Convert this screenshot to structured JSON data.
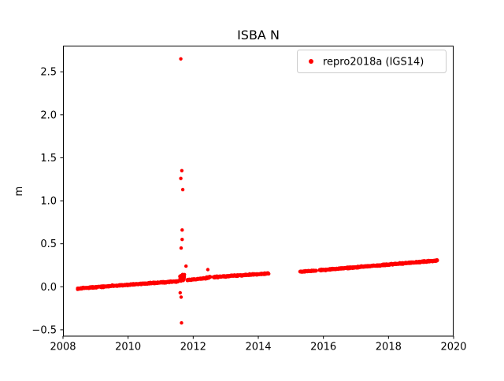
{
  "figure": {
    "background": "#ffffff"
  },
  "chart_data": {
    "type": "scatter",
    "title": "ISBA N",
    "xlabel": "",
    "ylabel": "m",
    "xlim": [
      2008,
      2020
    ],
    "ylim": [
      -0.574,
      2.804
    ],
    "x_ticks": [
      2008,
      2010,
      2012,
      2014,
      2016,
      2018,
      2020
    ],
    "y_ticks": [
      -0.5,
      0.0,
      0.5,
      1.0,
      1.5,
      2.0,
      2.5
    ],
    "grid": false,
    "legend": {
      "position": "upper right",
      "border_color": "#cccccc",
      "background": "#ffffff"
    },
    "series": [
      {
        "name": "repro2018a (IGS14)",
        "color": "#ff0000",
        "marker": "dot",
        "marker_radius_px": 2.2,
        "trend_segments": [
          {
            "x_start": 2008.45,
            "x_end": 2011.55,
            "y_start": -0.02,
            "y_end": 0.065,
            "points_per_year": 160,
            "y_jitter": 0.011
          },
          {
            "x_start": 2011.82,
            "x_end": 2012.35,
            "y_start": 0.078,
            "y_end": 0.098,
            "points_per_year": 160,
            "y_jitter": 0.011
          },
          {
            "x_start": 2012.38,
            "x_end": 2012.53,
            "y_start": 0.1,
            "y_end": 0.115,
            "points_per_year": 220,
            "y_jitter": 0.012
          },
          {
            "x_start": 2012.62,
            "x_end": 2014.32,
            "y_start": 0.112,
            "y_end": 0.155,
            "points_per_year": 160,
            "y_jitter": 0.011
          },
          {
            "x_start": 2015.28,
            "x_end": 2015.78,
            "y_start": 0.175,
            "y_end": 0.187,
            "points_per_year": 160,
            "y_jitter": 0.01
          },
          {
            "x_start": 2015.88,
            "x_end": 2019.5,
            "y_start": 0.192,
            "y_end": 0.305,
            "points_per_year": 160,
            "y_jitter": 0.012
          }
        ],
        "cluster": {
          "x_center": 2011.67,
          "x_spread": 0.1,
          "y_center": 0.1,
          "y_spread": 0.05,
          "n_points": 70
        },
        "outliers": [
          [
            2011.62,
            2.65
          ],
          [
            2011.65,
            1.35
          ],
          [
            2011.62,
            1.26
          ],
          [
            2011.68,
            1.13
          ],
          [
            2011.66,
            0.66
          ],
          [
            2011.66,
            0.55
          ],
          [
            2011.63,
            0.45
          ],
          [
            2011.78,
            0.24
          ],
          [
            2012.45,
            0.2
          ],
          [
            2011.6,
            -0.07
          ],
          [
            2011.63,
            -0.12
          ],
          [
            2011.64,
            -0.42
          ],
          [
            2008.45,
            -0.03
          ]
        ]
      }
    ]
  }
}
